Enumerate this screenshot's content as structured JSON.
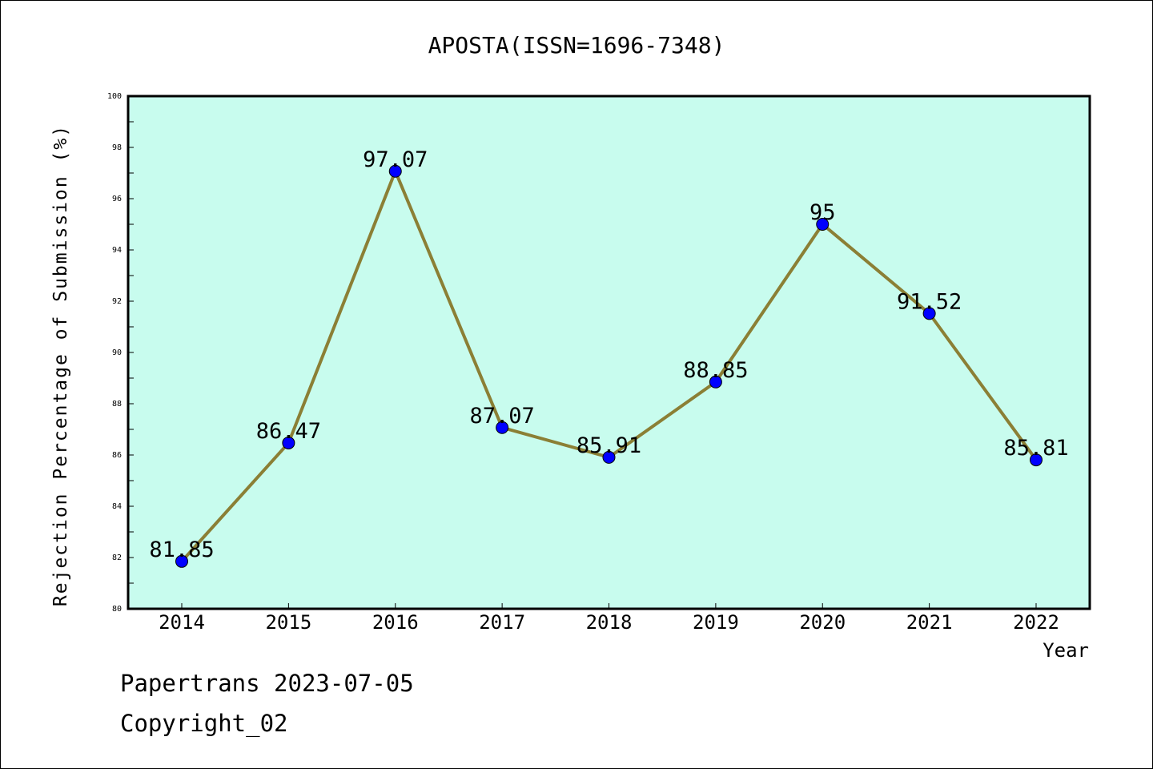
{
  "chart_data": {
    "type": "line",
    "title": "APOSTA(ISSN=1696-7348)",
    "xlabel": "Year",
    "ylabel": "Rejection Percentage of Submission (%)",
    "categories": [
      "2014",
      "2015",
      "2016",
      "2017",
      "2018",
      "2019",
      "2020",
      "2021",
      "2022"
    ],
    "values": [
      81.85,
      86.47,
      97.07,
      87.07,
      85.91,
      88.85,
      95,
      91.52,
      85.81
    ],
    "value_labels": [
      "81.85",
      "86.47",
      "97.07",
      "87.07",
      "85.91",
      "88.85",
      "95",
      "91.52",
      "85.81"
    ],
    "ylim": [
      80,
      100
    ],
    "yticks": [
      "80",
      "82",
      "84",
      "86",
      "88",
      "90",
      "92",
      "94",
      "96",
      "98",
      "100"
    ],
    "grid": false,
    "colors": {
      "plot_background": "#c8fcee",
      "line": "#8b7f35",
      "marker": "#0000ff"
    }
  },
  "footer": {
    "line1": "Papertrans 2023-07-05",
    "line2": "Copyright_02"
  }
}
